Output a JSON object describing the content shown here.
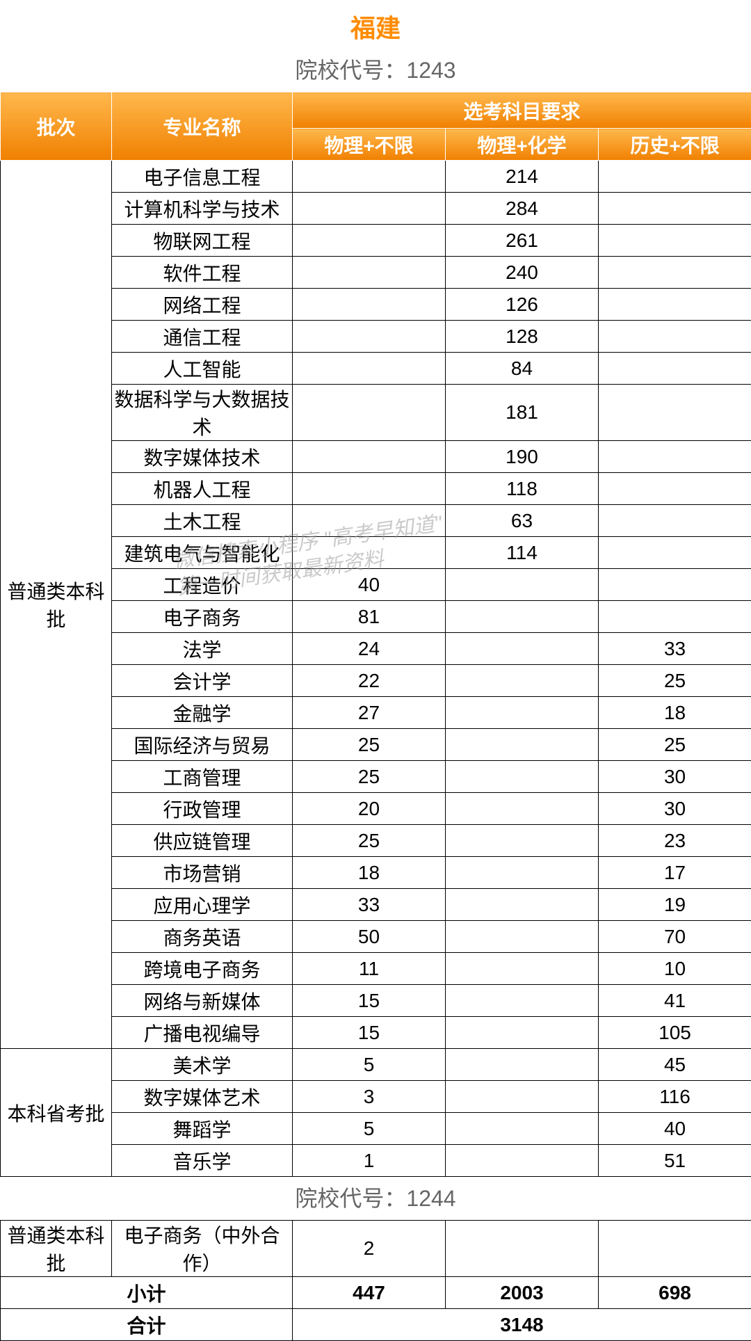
{
  "title": "福建",
  "title_color": "#ff8c00",
  "code_label_1": "院校代号：1243",
  "code_label_2": "院校代号：1244",
  "subtitle_color": "#666666",
  "header": {
    "batch": "批次",
    "major": "专业名称",
    "req_group": "选考科目要求",
    "req1": "物理+不限",
    "req2": "物理+化学",
    "req3": "历史+不限",
    "bg_top": "#f7941d",
    "bg_grad_light": "#ffb84d",
    "bg_grad_dark": "#f08000"
  },
  "batches": [
    {
      "name": "普通类本科批",
      "rows": [
        {
          "major": "电子信息工程",
          "r1": "",
          "r2": "214",
          "r3": ""
        },
        {
          "major": "计算机科学与技术",
          "r1": "",
          "r2": "284",
          "r3": ""
        },
        {
          "major": "物联网工程",
          "r1": "",
          "r2": "261",
          "r3": ""
        },
        {
          "major": "软件工程",
          "r1": "",
          "r2": "240",
          "r3": ""
        },
        {
          "major": "网络工程",
          "r1": "",
          "r2": "126",
          "r3": ""
        },
        {
          "major": "通信工程",
          "r1": "",
          "r2": "128",
          "r3": ""
        },
        {
          "major": "人工智能",
          "r1": "",
          "r2": "84",
          "r3": ""
        },
        {
          "major": "数据科学与大数据技术",
          "r1": "",
          "r2": "181",
          "r3": ""
        },
        {
          "major": "数字媒体技术",
          "r1": "",
          "r2": "190",
          "r3": ""
        },
        {
          "major": "机器人工程",
          "r1": "",
          "r2": "118",
          "r3": ""
        },
        {
          "major": "土木工程",
          "r1": "",
          "r2": "63",
          "r3": ""
        },
        {
          "major": "建筑电气与智能化",
          "r1": "",
          "r2": "114",
          "r3": ""
        },
        {
          "major": "工程造价",
          "r1": "40",
          "r2": "",
          "r3": ""
        },
        {
          "major": "电子商务",
          "r1": "81",
          "r2": "",
          "r3": ""
        },
        {
          "major": "法学",
          "r1": "24",
          "r2": "",
          "r3": "33"
        },
        {
          "major": "会计学",
          "r1": "22",
          "r2": "",
          "r3": "25"
        },
        {
          "major": "金融学",
          "r1": "27",
          "r2": "",
          "r3": "18"
        },
        {
          "major": "国际经济与贸易",
          "r1": "25",
          "r2": "",
          "r3": "25"
        },
        {
          "major": "工商管理",
          "r1": "25",
          "r2": "",
          "r3": "30"
        },
        {
          "major": "行政管理",
          "r1": "20",
          "r2": "",
          "r3": "30"
        },
        {
          "major": "供应链管理",
          "r1": "25",
          "r2": "",
          "r3": "23"
        },
        {
          "major": "市场营销",
          "r1": "18",
          "r2": "",
          "r3": "17"
        },
        {
          "major": "应用心理学",
          "r1": "33",
          "r2": "",
          "r3": "19"
        },
        {
          "major": "商务英语",
          "r1": "50",
          "r2": "",
          "r3": "70"
        },
        {
          "major": "跨境电子商务",
          "r1": "11",
          "r2": "",
          "r3": "10"
        },
        {
          "major": "网络与新媒体",
          "r1": "15",
          "r2": "",
          "r3": "41"
        },
        {
          "major": "广播电视编导",
          "r1": "15",
          "r2": "",
          "r3": "105"
        }
      ]
    },
    {
      "name": "本科省考批",
      "rows": [
        {
          "major": "美术学",
          "r1": "5",
          "r2": "",
          "r3": "45"
        },
        {
          "major": "数字媒体艺术",
          "r1": "3",
          "r2": "",
          "r3": "116"
        },
        {
          "major": "舞蹈学",
          "r1": "5",
          "r2": "",
          "r3": "40"
        },
        {
          "major": "音乐学",
          "r1": "1",
          "r2": "",
          "r3": "51"
        }
      ]
    }
  ],
  "second_batch": {
    "name": "普通类本科批",
    "row": {
      "major": "电子商务（中外合作）",
      "r1": "2",
      "r2": "",
      "r3": ""
    }
  },
  "subtotal": {
    "label": "小计",
    "r1": "447",
    "r2": "2003",
    "r3": "698"
  },
  "total": {
    "label": "合计",
    "value": "3148"
  },
  "watermark_line1": "微信搜索小程序 \"高考早知道\"",
  "watermark_line2": "第一时间获取最新资料"
}
